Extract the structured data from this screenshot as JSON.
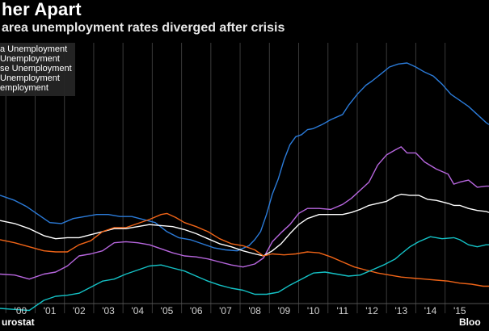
{
  "header": {
    "title": "her Apart",
    "subtitle": "area unemployment rates diverged after crisis"
  },
  "footer": {
    "source": "urostat",
    "brand": "Bloo"
  },
  "chart_data": {
    "type": "line",
    "title": "her Apart",
    "subtitle": "area unemployment rates diverged after crisis",
    "xlabel": "",
    "ylabel": "",
    "tick_labels": [
      "'00",
      "'01",
      "'02",
      "'03",
      "'04",
      "'05",
      "'06",
      "'07",
      "'08",
      "'09",
      "'10",
      "'11",
      "'12",
      "'13",
      "'14",
      "'15"
    ],
    "x_range": [
      1999.3,
      2016.0
    ],
    "y_range": [
      3.0,
      28.5
    ],
    "grid": "vertical",
    "legend_position": "top-left",
    "series": [
      {
        "name": "a Unemployment",
        "color": "#2b7bd9",
        "x": [
          1999.3,
          1999.8,
          2000.2,
          2000.6,
          2001.0,
          2001.4,
          2001.8,
          2002.2,
          2002.6,
          2003.0,
          2003.4,
          2003.8,
          2004.2,
          2004.6,
          2005.0,
          2005.4,
          2005.8,
          2006.2,
          2006.6,
          2007.0,
          2007.4,
          2007.8,
          2008.0,
          2008.2,
          2008.4,
          2008.6,
          2008.8,
          2009.0,
          2009.2,
          2009.4,
          2009.6,
          2009.8,
          2010.0,
          2010.3,
          2010.6,
          2011.0,
          2011.2,
          2011.5,
          2011.8,
          2012.0,
          2012.3,
          2012.6,
          2012.9,
          2013.2,
          2013.5,
          2013.8,
          2014.1,
          2014.4,
          2014.7,
          2015.0,
          2015.3,
          2015.6,
          2015.9,
          2016.0
        ],
        "values": [
          13.4,
          12.9,
          12.3,
          11.5,
          10.7,
          10.6,
          11.1,
          11.3,
          11.5,
          11.5,
          11.3,
          11.3,
          11.0,
          10.7,
          9.8,
          9.2,
          9.0,
          8.6,
          8.2,
          8.0,
          7.9,
          8.4,
          9.0,
          9.8,
          11.5,
          13.5,
          15.0,
          16.9,
          18.4,
          19.2,
          19.4,
          19.9,
          20.0,
          20.4,
          20.9,
          21.4,
          22.3,
          23.4,
          24.3,
          24.7,
          25.4,
          26.1,
          26.4,
          26.5,
          26.1,
          25.6,
          25.2,
          24.4,
          23.4,
          22.8,
          22.2,
          21.4,
          20.6,
          20.4
        ]
      },
      {
        "name": "Unemployment",
        "color": "#b766de",
        "x": [
          1999.3,
          1999.8,
          2000.3,
          2000.8,
          2001.2,
          2001.6,
          2002.0,
          2002.4,
          2002.8,
          2003.2,
          2003.6,
          2004.0,
          2004.4,
          2004.8,
          2005.2,
          2005.6,
          2006.0,
          2006.4,
          2006.8,
          2007.2,
          2007.6,
          2008.0,
          2008.3,
          2008.6,
          2008.9,
          2009.2,
          2009.5,
          2009.8,
          2010.2,
          2010.6,
          2011.0,
          2011.3,
          2011.6,
          2011.9,
          2012.2,
          2012.5,
          2012.8,
          2013.0,
          2013.2,
          2013.5,
          2013.8,
          2014.2,
          2014.6,
          2014.8,
          2015.0,
          2015.3,
          2015.6,
          2015.9,
          2016.0
        ],
        "values": [
          5.6,
          5.5,
          5.1,
          5.6,
          5.8,
          6.4,
          7.4,
          7.6,
          7.9,
          8.7,
          8.8,
          8.7,
          8.5,
          8.1,
          7.7,
          7.4,
          7.3,
          7.1,
          6.8,
          6.5,
          6.3,
          6.6,
          7.2,
          8.8,
          9.7,
          10.5,
          11.6,
          12.1,
          12.1,
          12.0,
          12.5,
          13.1,
          13.9,
          14.7,
          16.4,
          17.4,
          17.9,
          18.2,
          17.6,
          17.6,
          16.7,
          16.0,
          15.5,
          14.5,
          14.7,
          14.9,
          14.2,
          14.3,
          14.3
        ]
      },
      {
        "name": "se Unemployment",
        "color": "#ffffff",
        "x": [
          1999.3,
          1999.8,
          2000.3,
          2000.8,
          2001.2,
          2001.6,
          2002.0,
          2002.4,
          2002.8,
          2003.2,
          2003.6,
          2004.0,
          2004.4,
          2004.8,
          2005.2,
          2005.6,
          2006.0,
          2006.4,
          2006.8,
          2007.2,
          2007.6,
          2008.0,
          2008.3,
          2008.6,
          2008.9,
          2009.2,
          2009.5,
          2009.8,
          2010.2,
          2010.6,
          2011.0,
          2011.3,
          2011.6,
          2011.9,
          2012.2,
          2012.5,
          2012.8,
          2013.0,
          2013.3,
          2013.6,
          2013.9,
          2014.2,
          2014.6,
          2014.8,
          2015.0,
          2015.3,
          2015.6,
          2015.9,
          2016.0
        ],
        "values": [
          10.9,
          10.6,
          10.1,
          9.4,
          9.1,
          9.2,
          9.2,
          9.5,
          9.8,
          10.1,
          10.1,
          10.3,
          10.5,
          10.4,
          10.3,
          10.0,
          9.6,
          9.1,
          8.6,
          8.3,
          7.9,
          7.6,
          7.4,
          7.9,
          8.6,
          9.6,
          10.5,
          11.1,
          11.5,
          11.5,
          11.5,
          11.7,
          12.0,
          12.4,
          12.6,
          12.8,
          13.3,
          13.5,
          13.4,
          13.4,
          13.0,
          12.9,
          12.6,
          12.4,
          12.4,
          12.1,
          11.9,
          11.8,
          11.7
        ]
      },
      {
        "name": "Unemployment",
        "color": "#f06417",
        "x": [
          1999.3,
          1999.8,
          2000.3,
          2000.8,
          2001.2,
          2001.6,
          2002.0,
          2002.4,
          2002.8,
          2003.2,
          2003.6,
          2004.0,
          2004.4,
          2004.8,
          2005.0,
          2005.3,
          2005.6,
          2006.0,
          2006.4,
          2006.8,
          2007.2,
          2007.6,
          2008.0,
          2008.3,
          2008.6,
          2009.0,
          2009.4,
          2009.8,
          2010.2,
          2010.6,
          2011.0,
          2011.4,
          2011.8,
          2012.2,
          2012.6,
          2013.0,
          2013.4,
          2013.8,
          2014.2,
          2014.6,
          2015.0,
          2015.4,
          2015.8,
          2016.0
        ],
        "values": [
          9.0,
          8.7,
          8.3,
          7.9,
          7.8,
          7.8,
          8.5,
          8.9,
          9.8,
          10.2,
          10.2,
          10.6,
          11.0,
          11.5,
          11.6,
          11.2,
          10.7,
          10.3,
          9.8,
          9.1,
          8.6,
          8.4,
          8.0,
          7.4,
          7.6,
          7.5,
          7.6,
          7.8,
          7.7,
          7.3,
          6.8,
          6.3,
          6.0,
          5.7,
          5.5,
          5.3,
          5.2,
          5.1,
          5.0,
          4.9,
          4.7,
          4.6,
          4.4,
          4.4
        ]
      },
      {
        "name": "employment",
        "color": "#14c2c6",
        "x": [
          1999.3,
          1999.8,
          2000.3,
          2000.8,
          2001.2,
          2001.6,
          2002.0,
          2002.4,
          2002.8,
          2003.2,
          2003.6,
          2004.0,
          2004.4,
          2004.8,
          2005.2,
          2005.6,
          2006.0,
          2006.4,
          2006.8,
          2007.2,
          2007.6,
          2008.0,
          2008.4,
          2008.8,
          2009.2,
          2009.6,
          2010.0,
          2010.4,
          2010.8,
          2011.2,
          2011.6,
          2012.0,
          2012.4,
          2012.8,
          2013.0,
          2013.3,
          2013.6,
          2014.0,
          2014.4,
          2014.8,
          2015.0,
          2015.3,
          2015.6,
          2015.9,
          2016.0
        ],
        "values": [
          2.2,
          2.1,
          2.0,
          3.0,
          3.4,
          3.5,
          3.7,
          4.3,
          4.9,
          5.1,
          5.6,
          6.0,
          6.4,
          6.5,
          6.2,
          5.9,
          5.4,
          4.9,
          4.5,
          4.2,
          4.0,
          3.6,
          3.6,
          3.8,
          4.5,
          5.1,
          5.7,
          5.8,
          5.6,
          5.4,
          5.5,
          6.0,
          6.5,
          7.1,
          7.6,
          8.3,
          8.8,
          9.3,
          9.1,
          9.2,
          9.0,
          8.5,
          8.3,
          8.5,
          8.5
        ]
      }
    ]
  }
}
